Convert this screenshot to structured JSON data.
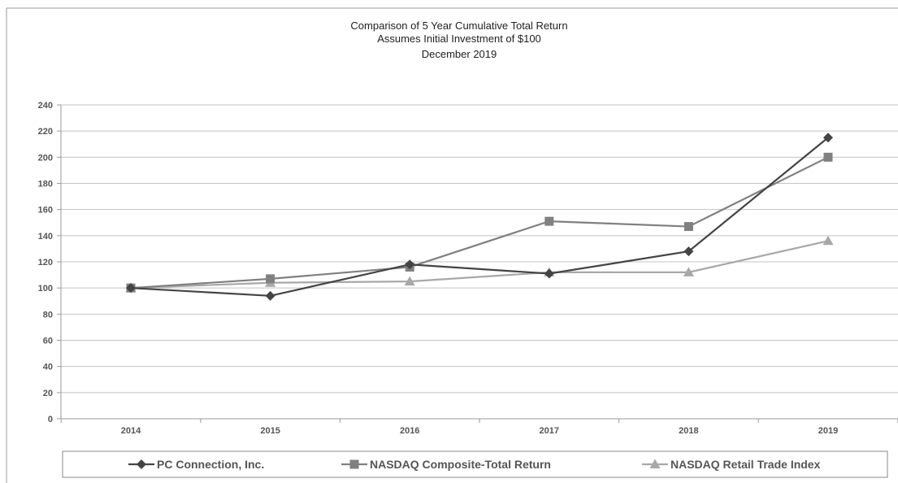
{
  "chart_data": {
    "type": "line",
    "title": [
      "Comparison of 5 Year Cumulative Total Return",
      "Assumes Initial Investment of $100",
      "December 2019"
    ],
    "xlabel": "",
    "ylabel": "",
    "categories": [
      "2014",
      "2015",
      "2016",
      "2017",
      "2018",
      "2019"
    ],
    "ylim": [
      0,
      240
    ],
    "yticks": [
      0,
      20,
      40,
      60,
      80,
      100,
      120,
      140,
      160,
      180,
      200,
      220,
      240
    ],
    "grid": true,
    "legend_position": "bottom",
    "series": [
      {
        "name": "PC Connection, Inc.",
        "marker": "diamond",
        "color": "#444444",
        "values": [
          100,
          94,
          118,
          111,
          128,
          215
        ]
      },
      {
        "name": "NASDAQ Composite-Total Return",
        "marker": "square",
        "color": "#808080",
        "values": [
          100,
          107,
          116,
          151,
          147,
          200
        ]
      },
      {
        "name": "NASDAQ Retail Trade Index",
        "marker": "triangle",
        "color": "#a8a8a8",
        "values": [
          100,
          104,
          105,
          112,
          112,
          136
        ]
      }
    ]
  }
}
